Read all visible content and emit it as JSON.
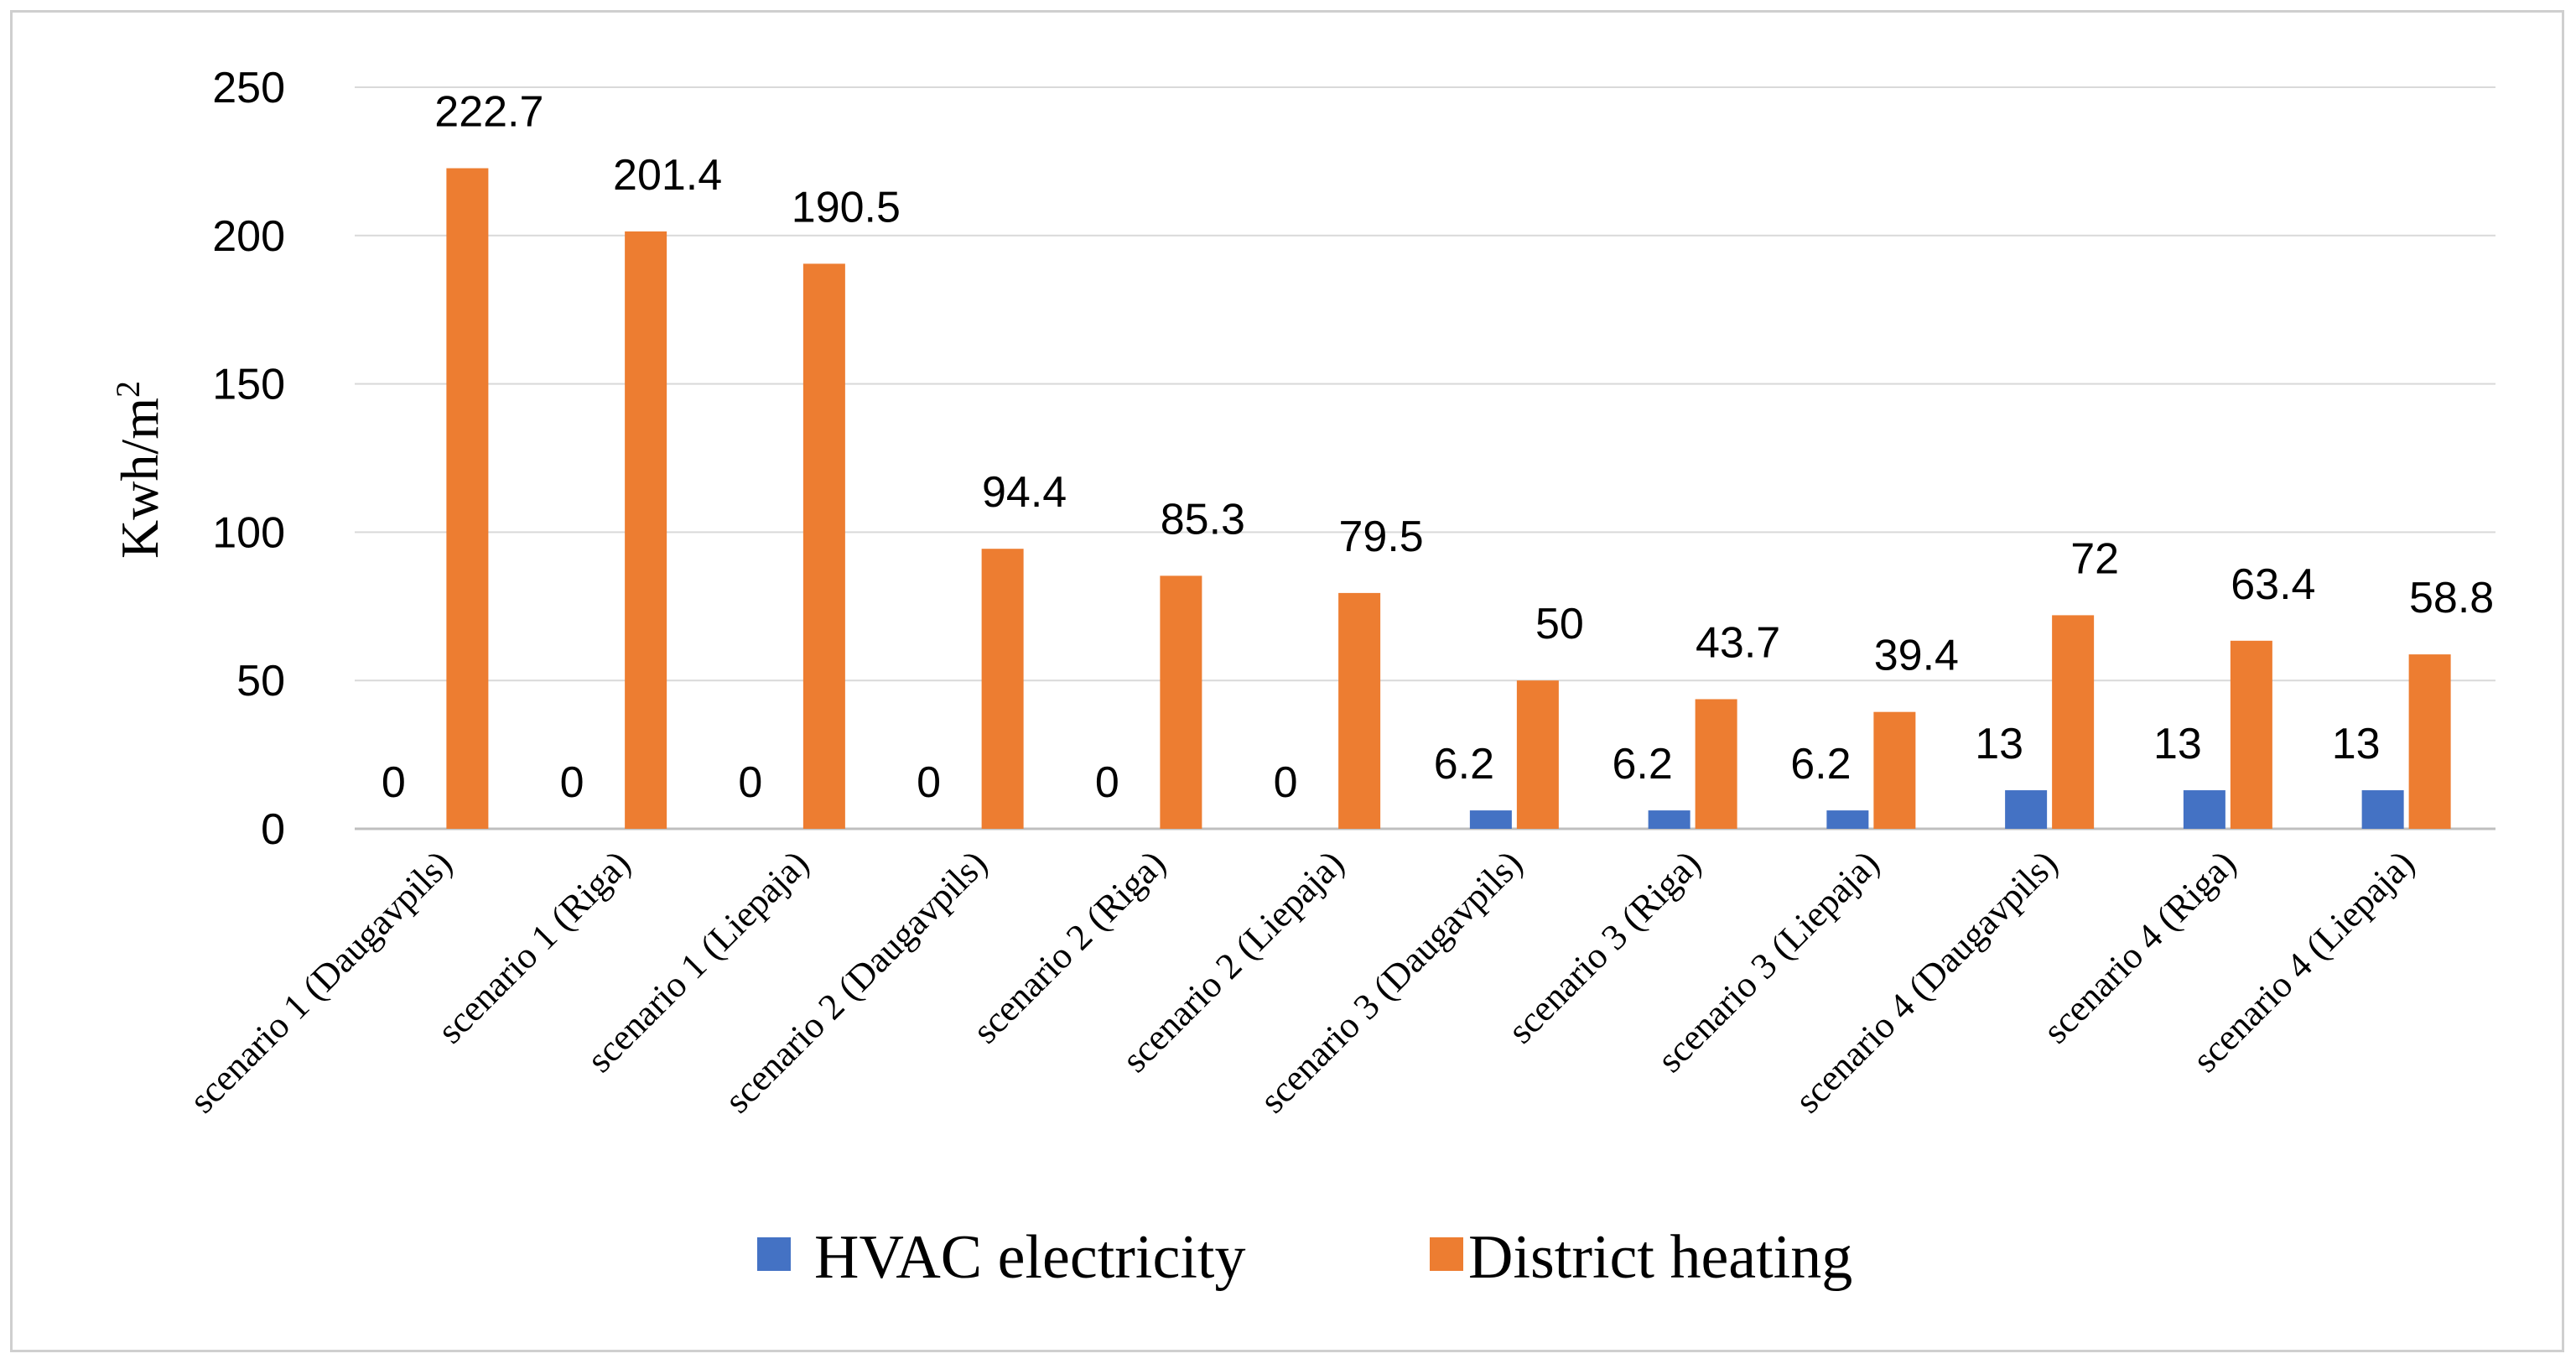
{
  "chart_data": {
    "type": "bar",
    "title": "",
    "xlabel": "",
    "ylabel": "Kwh/m",
    "ylabel_superscript": "2",
    "ylim": [
      0,
      250
    ],
    "yticks": [
      0,
      50,
      100,
      150,
      200,
      250
    ],
    "grid": true,
    "legend_position": "bottom",
    "categories": [
      "scenario 1 (Daugavpils)",
      "scenario 1 (Riga)",
      "scenario 1 (Liepaja)",
      "scenario 2 (Daugavpils)",
      "scenario 2 (Riga)",
      "scenario 2 (Liepaja)",
      "scenario 3 (Daugavpils)",
      "scenario 3 (Riga)",
      "scenario 3 (Liepaja)",
      "scenario 4 (Daugavpils)",
      "scenario 4 (Riga)",
      "scenario 4 (Liepaja)"
    ],
    "series": [
      {
        "name": "HVAC electricity",
        "color": "#4472C4",
        "values": [
          0,
          0,
          0,
          0,
          0,
          0,
          6.2,
          6.2,
          6.2,
          13,
          13,
          13
        ],
        "labels": [
          "0",
          "0",
          "0",
          "0",
          "0",
          "0",
          "6.2",
          "6.2",
          "6.2",
          "13",
          "13",
          "13"
        ]
      },
      {
        "name": "District heating",
        "color": "#ED7D31",
        "values": [
          222.7,
          201.4,
          190.5,
          94.4,
          85.3,
          79.5,
          50,
          43.7,
          39.4,
          72,
          63.4,
          58.8
        ],
        "labels": [
          "222.7",
          "201.4",
          "190.5",
          "94.4",
          "85.3",
          "79.5",
          "50",
          "43.7",
          "39.4",
          "72",
          "63.4",
          "58.8"
        ]
      }
    ]
  }
}
